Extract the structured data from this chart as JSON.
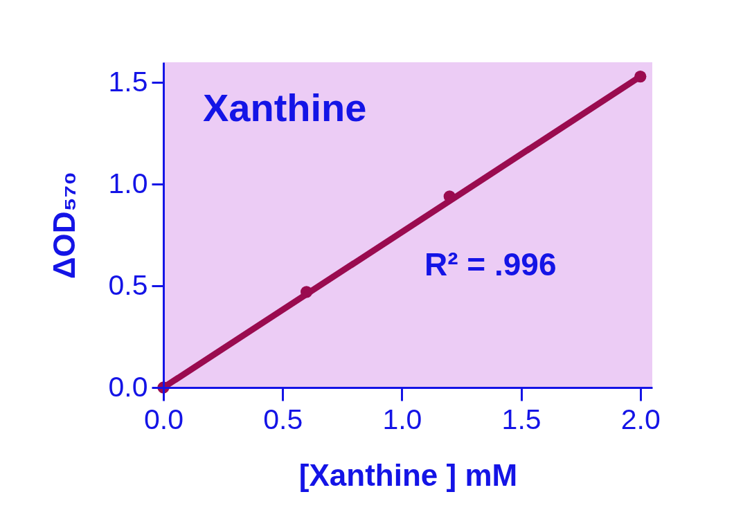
{
  "chart_data": {
    "type": "scatter",
    "title": "Xanthine",
    "xlabel": "[Xanthine ] mM",
    "ylabel": "ΔOD₅₇₀",
    "annotations": [
      "R² = .996"
    ],
    "series": [
      {
        "marker": "circle",
        "color": "#9a0b4f",
        "x": [
          0,
          0.6,
          1.2,
          2.0
        ],
        "values": [
          0,
          0.47,
          0.94,
          1.53
        ]
      },
      {
        "type": "line",
        "color": "#9a0b4f",
        "x": [
          0,
          2.0
        ],
        "values": [
          0,
          1.53
        ]
      }
    ],
    "xlim": [
      0,
      2.05
    ],
    "ylim": [
      0,
      1.6
    ],
    "xticks": [
      {
        "value": 0,
        "label": "0.0"
      },
      0.5,
      {
        "value": 1,
        "label": "1.0"
      },
      1.5,
      {
        "value": 2,
        "label": "2.0"
      }
    ],
    "yticks": [
      {
        "value": 0,
        "label": "0.0"
      },
      0.5,
      {
        "value": 1,
        "label": "1.0"
      },
      1.5
    ]
  }
}
